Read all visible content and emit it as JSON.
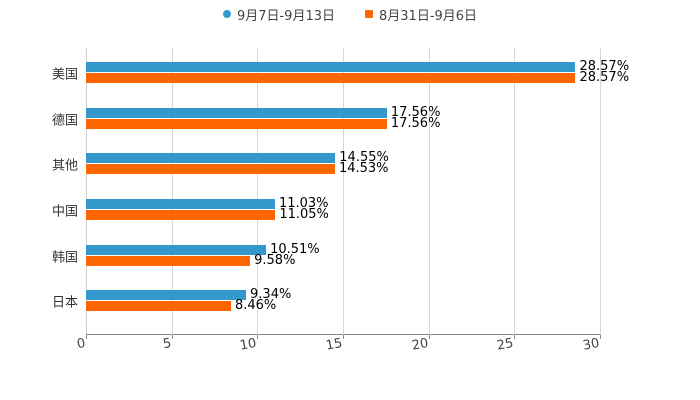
{
  "legend": [
    {
      "label": "9月7日-9月13日",
      "color": "#3399cc",
      "shape": "circle"
    },
    {
      "label": "8月31日-9月6日",
      "color": "#ff6600",
      "shape": "square"
    }
  ],
  "chart_data": {
    "type": "bar",
    "orientation": "horizontal",
    "title": "",
    "xlabel": "",
    "ylabel": "",
    "categories": [
      "美国",
      "德国",
      "其他",
      "中国",
      "韩国",
      "日本"
    ],
    "series": [
      {
        "name": "9月7日-9月13日",
        "color": "#3399cc",
        "values": [
          28.57,
          17.56,
          14.55,
          11.03,
          10.51,
          9.34
        ]
      },
      {
        "name": "8月31日-9月6日",
        "color": "#ff6600",
        "values": [
          28.57,
          17.56,
          14.53,
          11.05,
          9.58,
          8.46
        ]
      }
    ],
    "data_labels": [
      [
        "28.57%",
        "17.56%",
        "14.55%",
        "11.03%",
        "10.51%",
        "9.34%"
      ],
      [
        "28.57%",
        "17.56%",
        "14.53%",
        "11.05%",
        "9.58%",
        "8.46%"
      ]
    ],
    "xlim": [
      0,
      30
    ],
    "x_ticks": [
      "0",
      "5",
      "10",
      "15",
      "20",
      "25",
      "30"
    ],
    "grid": true,
    "legend_position": "top"
  }
}
